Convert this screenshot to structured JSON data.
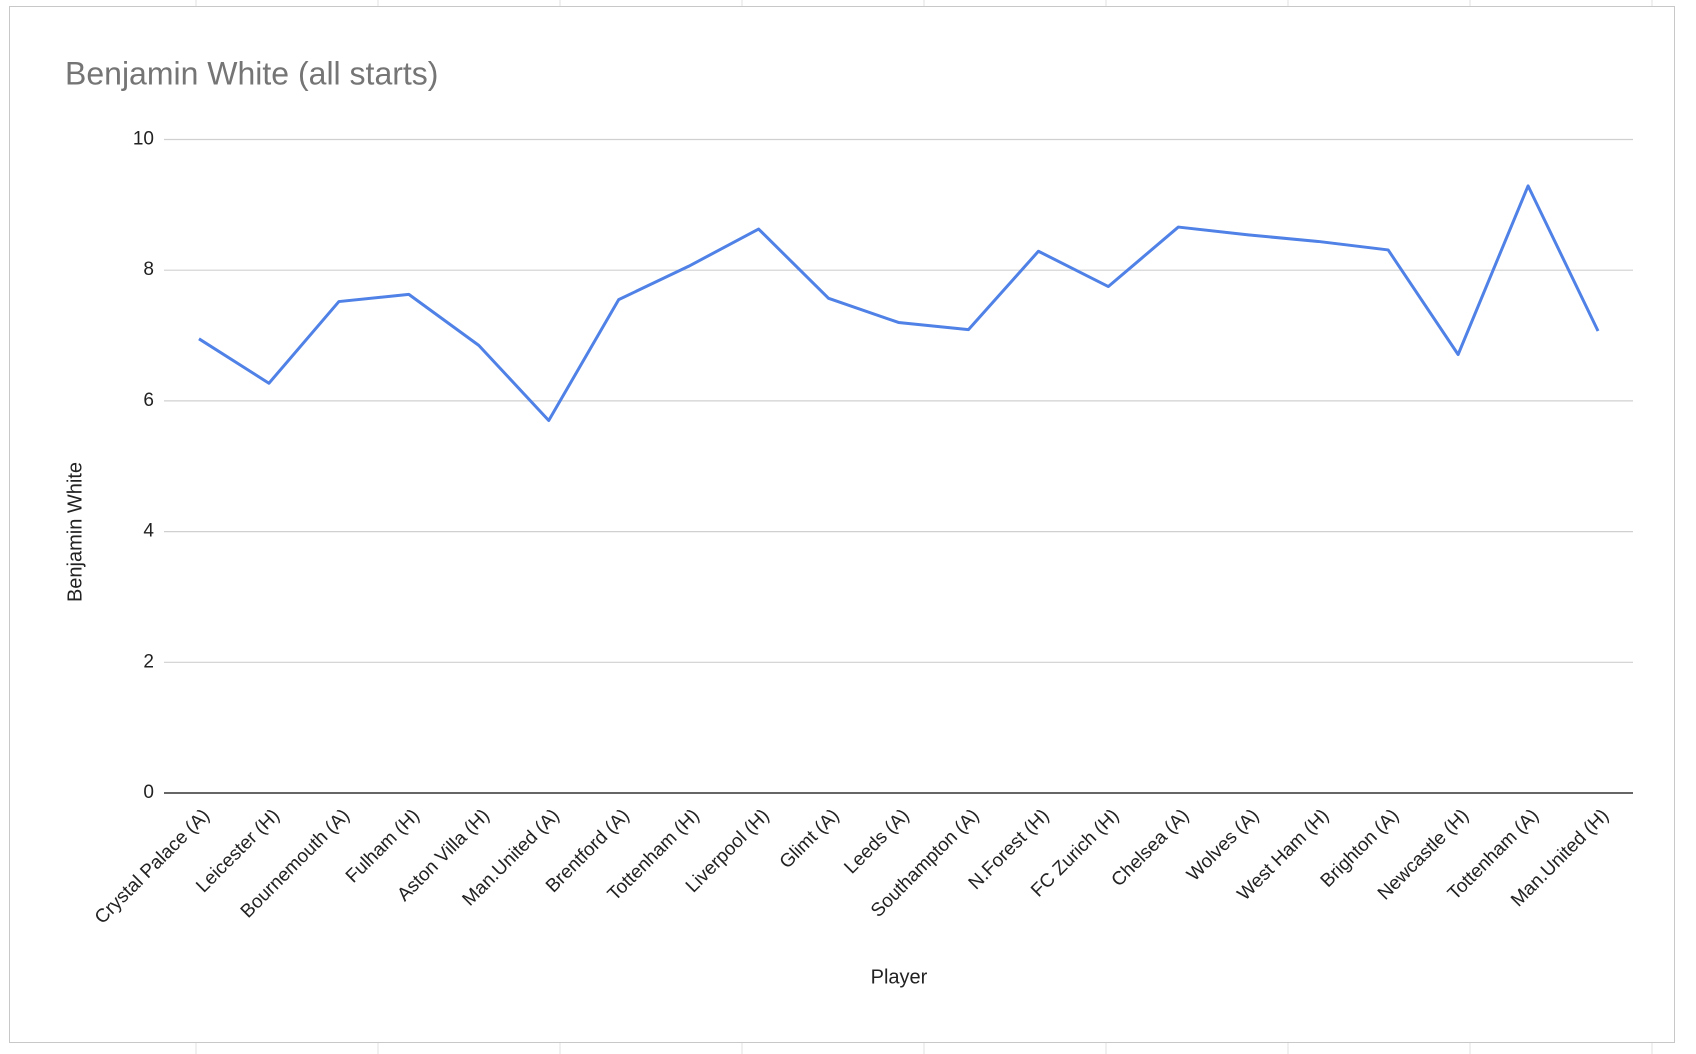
{
  "chart_data": {
    "type": "line",
    "title": "Benjamin White (all starts)",
    "x_label": "Player",
    "y_label": "Benjamin White",
    "categories": [
      "Crystal Palace (A)",
      "Leicester (H)",
      "Bournemouth (A)",
      "Fulham (H)",
      "Aston Villa (H)",
      "Man.United (A)",
      "Brentford (A)",
      "Tottenham (H)",
      "Liverpool (H)",
      "Glimt (A)",
      "Leeds (A)",
      "Southampton (A)",
      "N.Forest (H)",
      "FC Zurich (H)",
      "Chelsea (A)",
      "Wolves (A)",
      "West Ham (H)",
      "Brighton (A)",
      "Newcastle (H)",
      "Tottenham (A)",
      "Man.United (H)"
    ],
    "values": [
      6.95,
      6.27,
      7.52,
      7.63,
      6.85,
      5.7,
      7.55,
      8.06,
      8.63,
      7.57,
      7.2,
      7.09,
      8.29,
      7.75,
      8.66,
      8.54,
      8.44,
      8.31,
      6.71,
      9.29,
      7.07
    ],
    "color": "#4f81e6",
    "ylim": [
      0,
      10
    ],
    "yticks": [
      0,
      2,
      4,
      6,
      8,
      10
    ],
    "grid": true
  }
}
